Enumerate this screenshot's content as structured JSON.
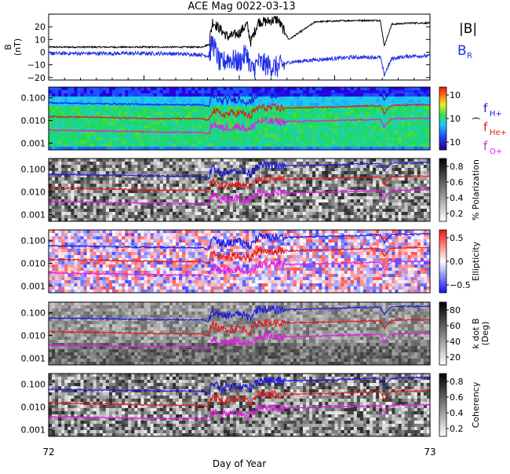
{
  "title": "ACE Mag 0022-03-13",
  "x_axis": {
    "label": "Day of Year",
    "ticks": [
      "72",
      "73"
    ],
    "range": [
      72,
      73
    ]
  },
  "colors": {
    "total_field": "#000000",
    "radial_field": "#1f2fe6",
    "f_h": "#1a1ae0",
    "f_he": "#e01a1a",
    "f_o": "#e61ae6",
    "spectrum_bg_low": "#2200aa",
    "spectrum_bg_mid": "#22cc55",
    "grid_gray": "#888888"
  },
  "panels": [
    {
      "id": "field",
      "ylabel": "B (nT)",
      "ylabel_parts": [
        "B",
        "(nT)"
      ],
      "ticks": [
        "20",
        "10",
        "0",
        "−10",
        "−20"
      ],
      "legend": [
        {
          "text": "|B|",
          "color": "#000000"
        },
        {
          "text": "B",
          "sub": "R",
          "color": "#1f2fe6"
        }
      ]
    },
    {
      "id": "power",
      "ticks": [
        "0.100",
        "0.010",
        "0.001"
      ],
      "colorbar": {
        "type": "spectral",
        "ticks": [
          "10",
          "10",
          "10"
        ],
        "label": ")"
      },
      "legend": [
        {
          "text": "f",
          "sub": "H+",
          "color": "#1a1ae0"
        },
        {
          "text": "f",
          "sub": "He+",
          "color": "#e01a1a"
        },
        {
          "text": "f",
          "sub": "O+",
          "color": "#e61ae6"
        }
      ]
    },
    {
      "id": "polarization",
      "ticks": [
        "0.100",
        "0.010",
        "0.001"
      ],
      "colorbar": {
        "type": "gray",
        "ticks": [
          "0.8",
          "0.6",
          "0.4",
          "0.2"
        ],
        "label": "% Polarization"
      }
    },
    {
      "id": "ellipticity",
      "ticks": [
        "0.100",
        "0.010",
        "0.001"
      ],
      "colorbar": {
        "type": "diverging",
        "ticks": [
          "0.5",
          "0.0",
          "−0.5"
        ],
        "label": "Ellipticity"
      }
    },
    {
      "id": "kdotb",
      "ticks": [
        "0.100",
        "0.010",
        "0.001"
      ],
      "colorbar": {
        "type": "gray",
        "ticks": [
          "80",
          "60",
          "40",
          "20"
        ],
        "label": "k dot B",
        "label2": "(Deg)"
      }
    },
    {
      "id": "coherency",
      "ticks": [
        "0.100",
        "0.010",
        "0.001"
      ],
      "colorbar": {
        "type": "gray",
        "ticks": [
          "0.8",
          "0.6",
          "0.4",
          "0.2"
        ],
        "label": "Coherency"
      }
    }
  ],
  "chart_data": {
    "type": "line",
    "title": "ACE Mag 0022-03-13",
    "xlabel": "Day of Year",
    "xlim": [
      72,
      73
    ],
    "field_panel": {
      "ylabel": "B (nT)",
      "ylim": [
        -22,
        30
      ],
      "series": [
        {
          "name": "|B|",
          "x": [
            72.0,
            72.2,
            72.3,
            72.4,
            72.42,
            72.43,
            72.45,
            72.47,
            72.5,
            72.52,
            72.53,
            72.55,
            72.57,
            72.6,
            72.63,
            72.7,
            72.8,
            72.87,
            72.88,
            72.9,
            72.95,
            73.0
          ],
          "y": [
            4,
            4,
            4,
            4,
            6,
            24,
            18,
            12,
            15,
            22,
            8,
            24,
            24,
            26,
            10,
            24,
            25,
            25,
            5,
            22,
            23,
            23
          ]
        },
        {
          "name": "B_R",
          "x": [
            72.0,
            72.2,
            72.3,
            72.4,
            72.42,
            72.43,
            72.45,
            72.47,
            72.5,
            72.52,
            72.53,
            72.55,
            72.57,
            72.6,
            72.63,
            72.7,
            72.8,
            72.87,
            72.88,
            72.9,
            72.95,
            73.0
          ],
          "y": [
            -1,
            -1,
            -1,
            -2,
            -3,
            8,
            -10,
            -5,
            -8,
            0,
            -15,
            -8,
            -10,
            -12,
            -8,
            -6,
            -4,
            -4,
            -18,
            -5,
            -3,
            -3
          ]
        }
      ]
    },
    "frequency_panels": {
      "ylabel_scale": "log",
      "ylim": [
        0.0005,
        0.3
      ],
      "series": [
        {
          "name": "f_H+",
          "x": [
            72.0,
            72.3,
            72.4,
            72.42,
            72.43,
            72.45,
            72.5,
            72.53,
            72.55,
            72.6,
            72.7,
            72.85,
            72.87,
            72.88,
            72.9,
            73.0
          ],
          "y": [
            0.06,
            0.05,
            0.05,
            0.04,
            0.12,
            0.07,
            0.09,
            0.06,
            0.15,
            0.14,
            0.15,
            0.18,
            0.18,
            0.08,
            0.19,
            0.2
          ]
        },
        {
          "name": "f_He+",
          "x": [
            72.0,
            72.3,
            72.4,
            72.42,
            72.43,
            72.45,
            72.5,
            72.53,
            72.55,
            72.6,
            72.7,
            72.85,
            72.87,
            72.88,
            72.9,
            73.0
          ],
          "y": [
            0.015,
            0.012,
            0.012,
            0.01,
            0.03,
            0.018,
            0.022,
            0.015,
            0.038,
            0.035,
            0.038,
            0.045,
            0.045,
            0.02,
            0.048,
            0.05
          ]
        },
        {
          "name": "f_O+",
          "x": [
            72.0,
            72.3,
            72.4,
            72.42,
            72.43,
            72.45,
            72.5,
            72.53,
            72.55,
            72.6,
            72.7,
            72.85,
            72.87,
            72.88,
            72.9,
            73.0
          ],
          "y": [
            0.0038,
            0.003,
            0.003,
            0.0025,
            0.0075,
            0.0045,
            0.0055,
            0.0038,
            0.0095,
            0.0088,
            0.0095,
            0.011,
            0.011,
            0.005,
            0.012,
            0.0125
          ]
        }
      ]
    }
  }
}
